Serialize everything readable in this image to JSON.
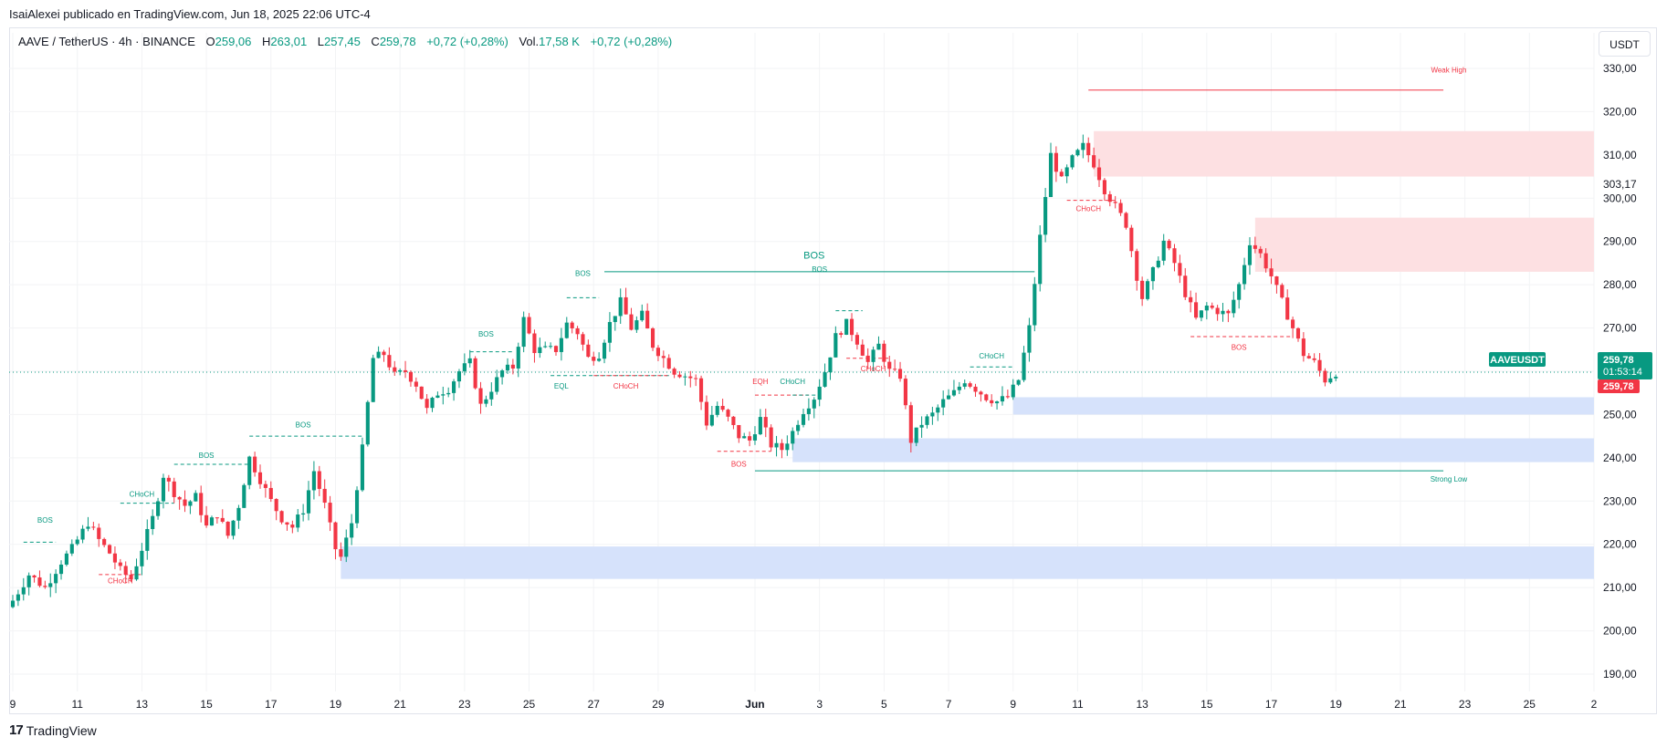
{
  "header": {
    "publisher_line": "IsaiAlexei publicado en TradingView.com, Jun 18, 2025 22:06 UTC-4"
  },
  "legend": {
    "symbol": "AAVE / TetherUS · 4h · BINANCE",
    "open_label": "O",
    "open": "259,06",
    "high_label": "H",
    "high": "263,01",
    "low_label": "L",
    "low": "257,45",
    "close_label": "C",
    "close": "259,78",
    "change": "+0,72 (+0,28%)",
    "volume_label": "Vol.",
    "volume": "17,58 K",
    "volume_change": "+0,72 (+0,28%)"
  },
  "currency_button": "USDT",
  "brand": {
    "logo_text": "17",
    "name": "TradingView"
  },
  "colors": {
    "up": "#089981",
    "down": "#f23645",
    "supply_zone": "#fde0e2",
    "demand_zone": "#d6e2fb",
    "grid": "#f2f3f5",
    "axis_text": "#131722"
  },
  "chart_data": {
    "type": "candlestick",
    "title": "AAVE / TetherUS · 4h · BINANCE",
    "ylim": [
      186,
      334
    ],
    "y_ticks": [
      "190,00",
      "200,00",
      "210,00",
      "220,00",
      "230,00",
      "240,00",
      "250,00",
      "260,00",
      "270,00",
      "280,00",
      "290,00",
      "300,00",
      "310,00",
      "320,00",
      "330,00"
    ],
    "y_tick_values": [
      190,
      200,
      210,
      220,
      230,
      240,
      250,
      260,
      270,
      280,
      290,
      300,
      310,
      320,
      330
    ],
    "x_ticks": [
      "9",
      "11",
      "13",
      "15",
      "17",
      "19",
      "21",
      "23",
      "25",
      "27",
      "29",
      "Jun",
      "3",
      "5",
      "7",
      "9",
      "11",
      "13",
      "15",
      "17",
      "19",
      "21",
      "23",
      "25",
      "2"
    ],
    "x_tick_index": [
      0,
      12,
      24,
      36,
      48,
      60,
      72,
      84,
      96,
      108,
      120,
      138,
      150,
      162,
      174,
      186,
      198,
      210,
      222,
      234,
      246,
      258,
      270,
      282,
      294
    ],
    "x_range_bars": [
      0,
      294
    ],
    "last_bar_index": 246,
    "price_line": 259.78,
    "price_labels": [
      {
        "name": "AAVEUSDT",
        "value": "259,78",
        "countdown": "01:53:14"
      },
      {
        "value": "259,78"
      },
      {
        "value": "303,17"
      }
    ],
    "close_path": [
      [
        0,
        207
      ],
      [
        3,
        213
      ],
      [
        6,
        210
      ],
      [
        9,
        216
      ],
      [
        11,
        219
      ],
      [
        14,
        225
      ],
      [
        16,
        221
      ],
      [
        18,
        218
      ],
      [
        20,
        214
      ],
      [
        22,
        212
      ],
      [
        24,
        219
      ],
      [
        26,
        226
      ],
      [
        28,
        236
      ],
      [
        30,
        232
      ],
      [
        32,
        229
      ],
      [
        34,
        231
      ],
      [
        36,
        224
      ],
      [
        38,
        227
      ],
      [
        40,
        222
      ],
      [
        42,
        229
      ],
      [
        44,
        240
      ],
      [
        46,
        235
      ],
      [
        48,
        230
      ],
      [
        50,
        226
      ],
      [
        52,
        224
      ],
      [
        54,
        228
      ],
      [
        56,
        237
      ],
      [
        58,
        229
      ],
      [
        60,
        219
      ],
      [
        61,
        217
      ],
      [
        63,
        225
      ],
      [
        65,
        242
      ],
      [
        67,
        263
      ],
      [
        69,
        264
      ],
      [
        71,
        259
      ],
      [
        73,
        260
      ],
      [
        75,
        257
      ],
      [
        77,
        251
      ],
      [
        79,
        255
      ],
      [
        81,
        256
      ],
      [
        83,
        260
      ],
      [
        85,
        262
      ],
      [
        87,
        252
      ],
      [
        89,
        256
      ],
      [
        91,
        260
      ],
      [
        93,
        261
      ],
      [
        95,
        272
      ],
      [
        97,
        265
      ],
      [
        99,
        265
      ],
      [
        101,
        265
      ],
      [
        103,
        271
      ],
      [
        105,
        269
      ],
      [
        107,
        263
      ],
      [
        109,
        264
      ],
      [
        111,
        271
      ],
      [
        113,
        276
      ],
      [
        115,
        270
      ],
      [
        117,
        273
      ],
      [
        119,
        266
      ],
      [
        121,
        263
      ],
      [
        123,
        260
      ],
      [
        125,
        259
      ],
      [
        127,
        258
      ],
      [
        129,
        248
      ],
      [
        131,
        252
      ],
      [
        133,
        249
      ],
      [
        135,
        245
      ],
      [
        137,
        244
      ],
      [
        139,
        249
      ],
      [
        141,
        243
      ],
      [
        143,
        242
      ],
      [
        145,
        246
      ],
      [
        147,
        251
      ],
      [
        149,
        254
      ],
      [
        151,
        260
      ],
      [
        153,
        268
      ],
      [
        155,
        271
      ],
      [
        157,
        267
      ],
      [
        159,
        262
      ],
      [
        161,
        266
      ],
      [
        163,
        260
      ],
      [
        165,
        259
      ],
      [
        167,
        244
      ],
      [
        169,
        248
      ],
      [
        171,
        250
      ],
      [
        173,
        253
      ],
      [
        175,
        255
      ],
      [
        177,
        258
      ],
      [
        179,
        256
      ],
      [
        181,
        254
      ],
      [
        183,
        253
      ],
      [
        185,
        254
      ],
      [
        187,
        258
      ],
      [
        189,
        270
      ],
      [
        191,
        291
      ],
      [
        193,
        310
      ],
      [
        195,
        304
      ],
      [
        197,
        309
      ],
      [
        199,
        312
      ],
      [
        201,
        308
      ],
      [
        203,
        302
      ],
      [
        205,
        298
      ],
      [
        207,
        294
      ],
      [
        209,
        282
      ],
      [
        210,
        277
      ],
      [
        212,
        283
      ],
      [
        214,
        290
      ],
      [
        216,
        285
      ],
      [
        218,
        278
      ],
      [
        220,
        272
      ],
      [
        222,
        275
      ],
      [
        224,
        274
      ],
      [
        226,
        273
      ],
      [
        228,
        280
      ],
      [
        230,
        290
      ],
      [
        232,
        287
      ],
      [
        234,
        282
      ],
      [
        236,
        276
      ],
      [
        238,
        270
      ],
      [
        240,
        264
      ],
      [
        242,
        262
      ],
      [
        244,
        258
      ],
      [
        246,
        259.78
      ]
    ],
    "structure_labels": [
      {
        "text": "BOS",
        "bar": 6,
        "price": 225,
        "color": "up"
      },
      {
        "text": "CHoCH",
        "bar": 20,
        "price": 211,
        "color": "down"
      },
      {
        "text": "CHoCH",
        "bar": 24,
        "price": 231,
        "color": "up"
      },
      {
        "text": "BOS",
        "bar": 36,
        "price": 240,
        "color": "up"
      },
      {
        "text": "BOS",
        "bar": 54,
        "price": 247,
        "color": "up"
      },
      {
        "text": "BOS",
        "bar": 88,
        "price": 268,
        "color": "up"
      },
      {
        "text": "BOS",
        "bar": 106,
        "price": 282,
        "color": "up"
      },
      {
        "text": "EQL",
        "bar": 102,
        "price": 256,
        "color": "up"
      },
      {
        "text": "CHoCH",
        "bar": 114,
        "price": 256,
        "color": "down"
      },
      {
        "text": "BOS",
        "bar": 150,
        "price": 283,
        "color": "up"
      },
      {
        "text": "EQH",
        "bar": 139,
        "price": 257,
        "color": "down"
      },
      {
        "text": "CHoCH",
        "bar": 145,
        "price": 257,
        "color": "up"
      },
      {
        "text": "BOS",
        "bar": 135,
        "price": 238,
        "color": "down"
      },
      {
        "text": "CHoCH",
        "bar": 160,
        "price": 260,
        "color": "down"
      },
      {
        "text": "CHoCH",
        "bar": 182,
        "price": 263,
        "color": "up"
      },
      {
        "text": "BOS",
        "bar": 149,
        "price": 286,
        "color": "up"
      },
      {
        "text": "CHoCH",
        "bar": 200,
        "price": 297,
        "color": "down"
      },
      {
        "text": "BOS",
        "bar": 228,
        "price": 265,
        "color": "down"
      },
      {
        "text": "Weak High",
        "bar": 267,
        "price": 329,
        "color": "down"
      },
      {
        "text": "Strong Low",
        "bar": 267,
        "price": 234.5,
        "color": "up"
      }
    ],
    "lines": [
      {
        "from_bar": 110,
        "to_bar": 190,
        "price": 283,
        "color": "up",
        "style": "solid"
      },
      {
        "from_bar": 200,
        "to_bar": 266,
        "price": 325,
        "color": "down",
        "style": "solid"
      },
      {
        "from_bar": 138,
        "to_bar": 266,
        "price": 237,
        "color": "up",
        "style": "solid"
      },
      {
        "from_bar": 2,
        "to_bar": 8,
        "price": 220.5,
        "color": "up",
        "style": "dashed"
      },
      {
        "from_bar": 16,
        "to_bar": 24,
        "price": 213,
        "color": "down",
        "style": "dashed"
      },
      {
        "from_bar": 20,
        "to_bar": 30,
        "price": 229.5,
        "color": "up",
        "style": "dashed"
      },
      {
        "from_bar": 30,
        "to_bar": 44,
        "price": 238.5,
        "color": "up",
        "style": "dashed"
      },
      {
        "from_bar": 44,
        "to_bar": 65,
        "price": 245,
        "color": "up",
        "style": "dashed"
      },
      {
        "from_bar": 85,
        "to_bar": 93,
        "price": 264.5,
        "color": "up",
        "style": "dashed"
      },
      {
        "from_bar": 103,
        "to_bar": 109,
        "price": 277,
        "color": "up",
        "style": "dashed"
      },
      {
        "from_bar": 100,
        "to_bar": 122,
        "price": 259,
        "color": "up",
        "style": "dashed"
      },
      {
        "from_bar": 108,
        "to_bar": 122,
        "price": 259,
        "color": "down",
        "style": "dashed"
      },
      {
        "from_bar": 138,
        "to_bar": 148,
        "price": 254.5,
        "color": "down",
        "style": "dashed"
      },
      {
        "from_bar": 145,
        "to_bar": 150,
        "price": 254.5,
        "color": "up",
        "style": "dashed"
      },
      {
        "from_bar": 131,
        "to_bar": 141,
        "price": 241.5,
        "color": "down",
        "style": "dashed"
      },
      {
        "from_bar": 153,
        "to_bar": 158,
        "price": 274,
        "color": "up",
        "style": "dashed"
      },
      {
        "from_bar": 155,
        "to_bar": 163,
        "price": 263,
        "color": "down",
        "style": "dashed"
      },
      {
        "from_bar": 178,
        "to_bar": 186,
        "price": 261,
        "color": "up",
        "style": "dashed"
      },
      {
        "from_bar": 196,
        "to_bar": 205,
        "price": 299.5,
        "color": "down",
        "style": "dashed"
      },
      {
        "from_bar": 219,
        "to_bar": 238,
        "price": 268,
        "color": "down",
        "style": "dashed"
      }
    ],
    "zones": [
      {
        "type": "supply",
        "from_bar": 201,
        "price_top": 315.5,
        "price_bottom": 305
      },
      {
        "type": "supply",
        "from_bar": 231,
        "price_top": 295.5,
        "price_bottom": 283
      },
      {
        "type": "demand",
        "from_bar": 186,
        "price_top": 254,
        "price_bottom": 250
      },
      {
        "type": "demand",
        "from_bar": 145,
        "price_top": 244.5,
        "price_bottom": 239
      },
      {
        "type": "demand",
        "from_bar": 61,
        "price_top": 219.5,
        "price_bottom": 212
      }
    ],
    "zones_extend_to_bar": 294
  }
}
